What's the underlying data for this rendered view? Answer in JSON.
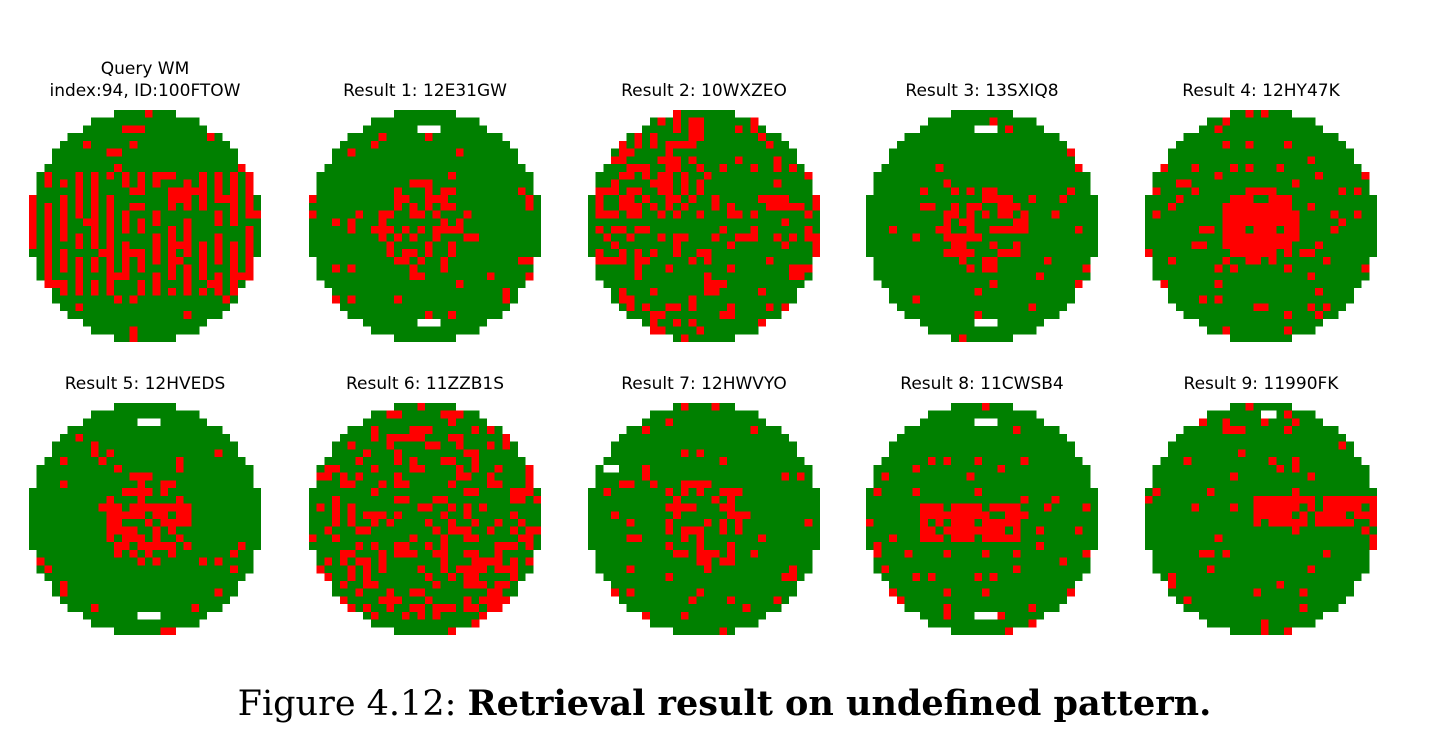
{
  "colors": {
    "normal": "#008000",
    "defect": "#ff0000",
    "background": "#ffffff"
  },
  "grid_size": 30,
  "query": {
    "title_line1": "Query WM",
    "title_line2": "index:94, ID:100FTOW"
  },
  "results": [
    {
      "title": "Result 1: 12E31GW"
    },
    {
      "title": "Result 2: 10WXZEO"
    },
    {
      "title": "Result 3: 13SXIQ8"
    },
    {
      "title": "Result 4: 12HY47K"
    },
    {
      "title": "Result 5: 12HVEDS"
    },
    {
      "title": "Result 6: 11ZZB1S"
    },
    {
      "title": "Result 7: 12HWVYO"
    },
    {
      "title": "Result 8: 11CWSB4"
    },
    {
      "title": "Result 9: 11990FK"
    }
  ],
  "caption": {
    "label": "Figure 4.12:",
    "text": "Retrieval result on undefined pattern."
  }
}
